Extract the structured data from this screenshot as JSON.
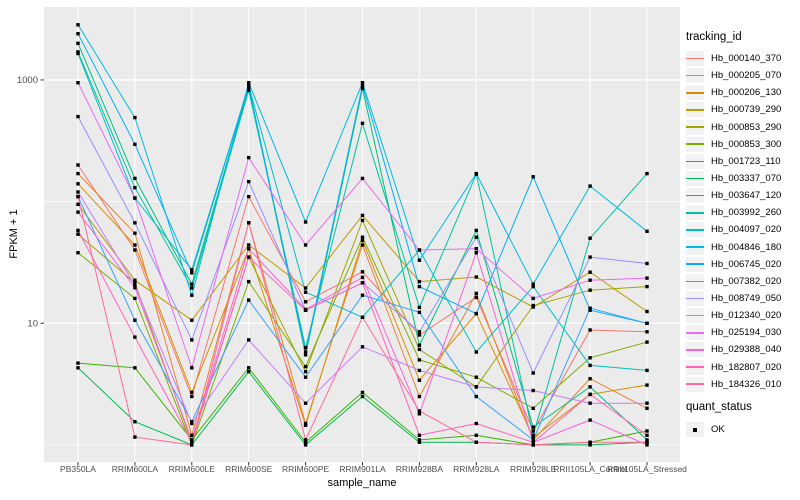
{
  "chart_data": {
    "type": "line",
    "title": "",
    "xlabel": "sample_name",
    "ylabel": "FPKM + 1",
    "y_scale": "log10",
    "ylim": [
      0.75,
      3800
    ],
    "grid": "on",
    "panel_bg": "#EBEBEB",
    "grid_color": "#FFFFFF",
    "point_color": "#000000",
    "tick_label_color": "#4D4D4D",
    "y_ticks": [
      {
        "label": "10",
        "value": 10
      },
      {
        "label": "1000",
        "value": 1000
      }
    ],
    "y_gridlines": [
      1,
      10,
      100,
      1000
    ],
    "categories": [
      "PB350LA",
      "RRIM600LA",
      "RRIM600LE",
      "RRIM600SE",
      "RRIM600PE",
      "RRIM901LA",
      "RRIM928BA",
      "RRIM928LA",
      "RRIM928LE",
      "RRII105LA_Control",
      "RRII105LA_Stressed"
    ],
    "legend": {
      "title": "tracking_id",
      "position": "right"
    },
    "quant_legend": {
      "title": "quant_status",
      "items": [
        {
          "label": "OK",
          "marker": "black-point"
        }
      ]
    },
    "series": [
      {
        "name": "Hb_000140_370",
        "color": "#F8766D",
        "values": [
          200,
          40,
          2.5,
          110,
          15,
          26.5,
          8,
          16.3,
          1.3,
          8.8,
          8.5
        ]
      },
      {
        "name": "Hb_000205_070",
        "color": "#EA8331",
        "values": [
          170,
          55,
          1.2,
          67,
          1.5,
          44,
          2.5,
          17.6,
          1.1,
          3.5,
          2
        ]
      },
      {
        "name": "Hb_000206_130",
        "color": "#D89000",
        "values": [
          140,
          44,
          2.7,
          41,
          1.45,
          48,
          3.4,
          12,
          1.15,
          2.6,
          3.1
        ]
      },
      {
        "name": "Hb_000739_290",
        "color": "#C09B00",
        "values": [
          95,
          22.6,
          10.6,
          44,
          19.5,
          77,
          22,
          24,
          13.6,
          26.3,
          12.5
        ]
      },
      {
        "name": "Hb_000853_290",
        "color": "#A3A500",
        "values": [
          54,
          21.5,
          1.05,
          35,
          4,
          70,
          6.1,
          3,
          14,
          18.7,
          20
        ]
      },
      {
        "name": "Hb_000853_300",
        "color": "#7CAE00",
        "values": [
          38,
          16,
          1,
          22,
          4.4,
          51,
          5,
          3.6,
          2,
          5.2,
          7
        ]
      },
      {
        "name": "Hb_001723_110",
        "color": "#39B600",
        "values": [
          4.7,
          4.3,
          1.1,
          4.3,
          1.05,
          2.7,
          1.1,
          1.2,
          1,
          1.05,
          1.3
        ]
      },
      {
        "name": "Hb_003337_070",
        "color": "#00BB4E",
        "values": [
          4.3,
          1.55,
          1,
          4,
          1,
          2.5,
          1.05,
          1.05,
          1,
          1,
          1.05
        ]
      },
      {
        "name": "Hb_003647_120",
        "color": "#00BF7D",
        "values": [
          2000,
          155,
          21,
          870,
          5.5,
          850,
          6.6,
          58,
          1.4,
          3,
          1.1
        ]
      },
      {
        "name": "Hb_003992_260",
        "color": "#00C1A3",
        "values": [
          1700,
          130,
          19.5,
          820,
          6.3,
          440,
          13.5,
          168,
          1.2,
          50,
          170
        ]
      },
      {
        "name": "Hb_004097_020",
        "color": "#00BFC4",
        "values": [
          1650,
          107,
          27.5,
          900,
          18,
          11.2,
          40,
          5.8,
          20,
          4.5,
          4.1
        ]
      },
      {
        "name": "Hb_004846_180",
        "color": "#00BAE0",
        "values": [
          2840,
          490,
          17,
          950,
          68,
          950,
          33,
          170,
          21,
          134,
          57
        ]
      },
      {
        "name": "Hb_006745_020",
        "color": "#00B0F6",
        "values": [
          2400,
          296,
          26,
          900,
          5.8,
          900,
          20,
          12,
          160,
          12.8,
          10
        ]
      },
      {
        "name": "Hb_007382_020",
        "color": "#35A2FF",
        "values": [
          110,
          10.6,
          1.55,
          15.5,
          3.6,
          17,
          12.3,
          2.5,
          1.1,
          13.3,
          10
        ]
      },
      {
        "name": "Hb_008749_050",
        "color": "#9590FF",
        "values": [
          500,
          67,
          7.3,
          146,
          12.8,
          21.5,
          8.5,
          51,
          3.9,
          35,
          31
        ]
      },
      {
        "name": "Hb_012340_020",
        "color": "#C77CFF",
        "values": [
          120,
          20.5,
          1.5,
          7.3,
          2.2,
          6.4,
          4.1,
          3,
          2.8,
          2.2,
          2.2
        ]
      },
      {
        "name": "Hb_025194_030",
        "color": "#E76BF3",
        "values": [
          950,
          107,
          4.3,
          230,
          44,
          155,
          40,
          41,
          16,
          22.6,
          23.5
        ]
      },
      {
        "name": "Hb_029388_040",
        "color": "#FA62DB",
        "values": [
          82,
          19.6,
          1.1,
          41,
          13,
          23.8,
          1.8,
          38,
          1.05,
          1.6,
          1
        ]
      },
      {
        "name": "Hb_182807_020",
        "color": "#FF62BC",
        "values": [
          58,
          7.7,
          1.05,
          35,
          12.8,
          21.5,
          1.2,
          1.5,
          1.05,
          2.6,
          1.2
        ]
      },
      {
        "name": "Hb_184326_010",
        "color": "#FF6A98",
        "values": [
          110,
          1.16,
          1,
          67,
          1.1,
          11.2,
          1.9,
          1.05,
          1,
          1.05,
          1.05
        ]
      }
    ]
  }
}
